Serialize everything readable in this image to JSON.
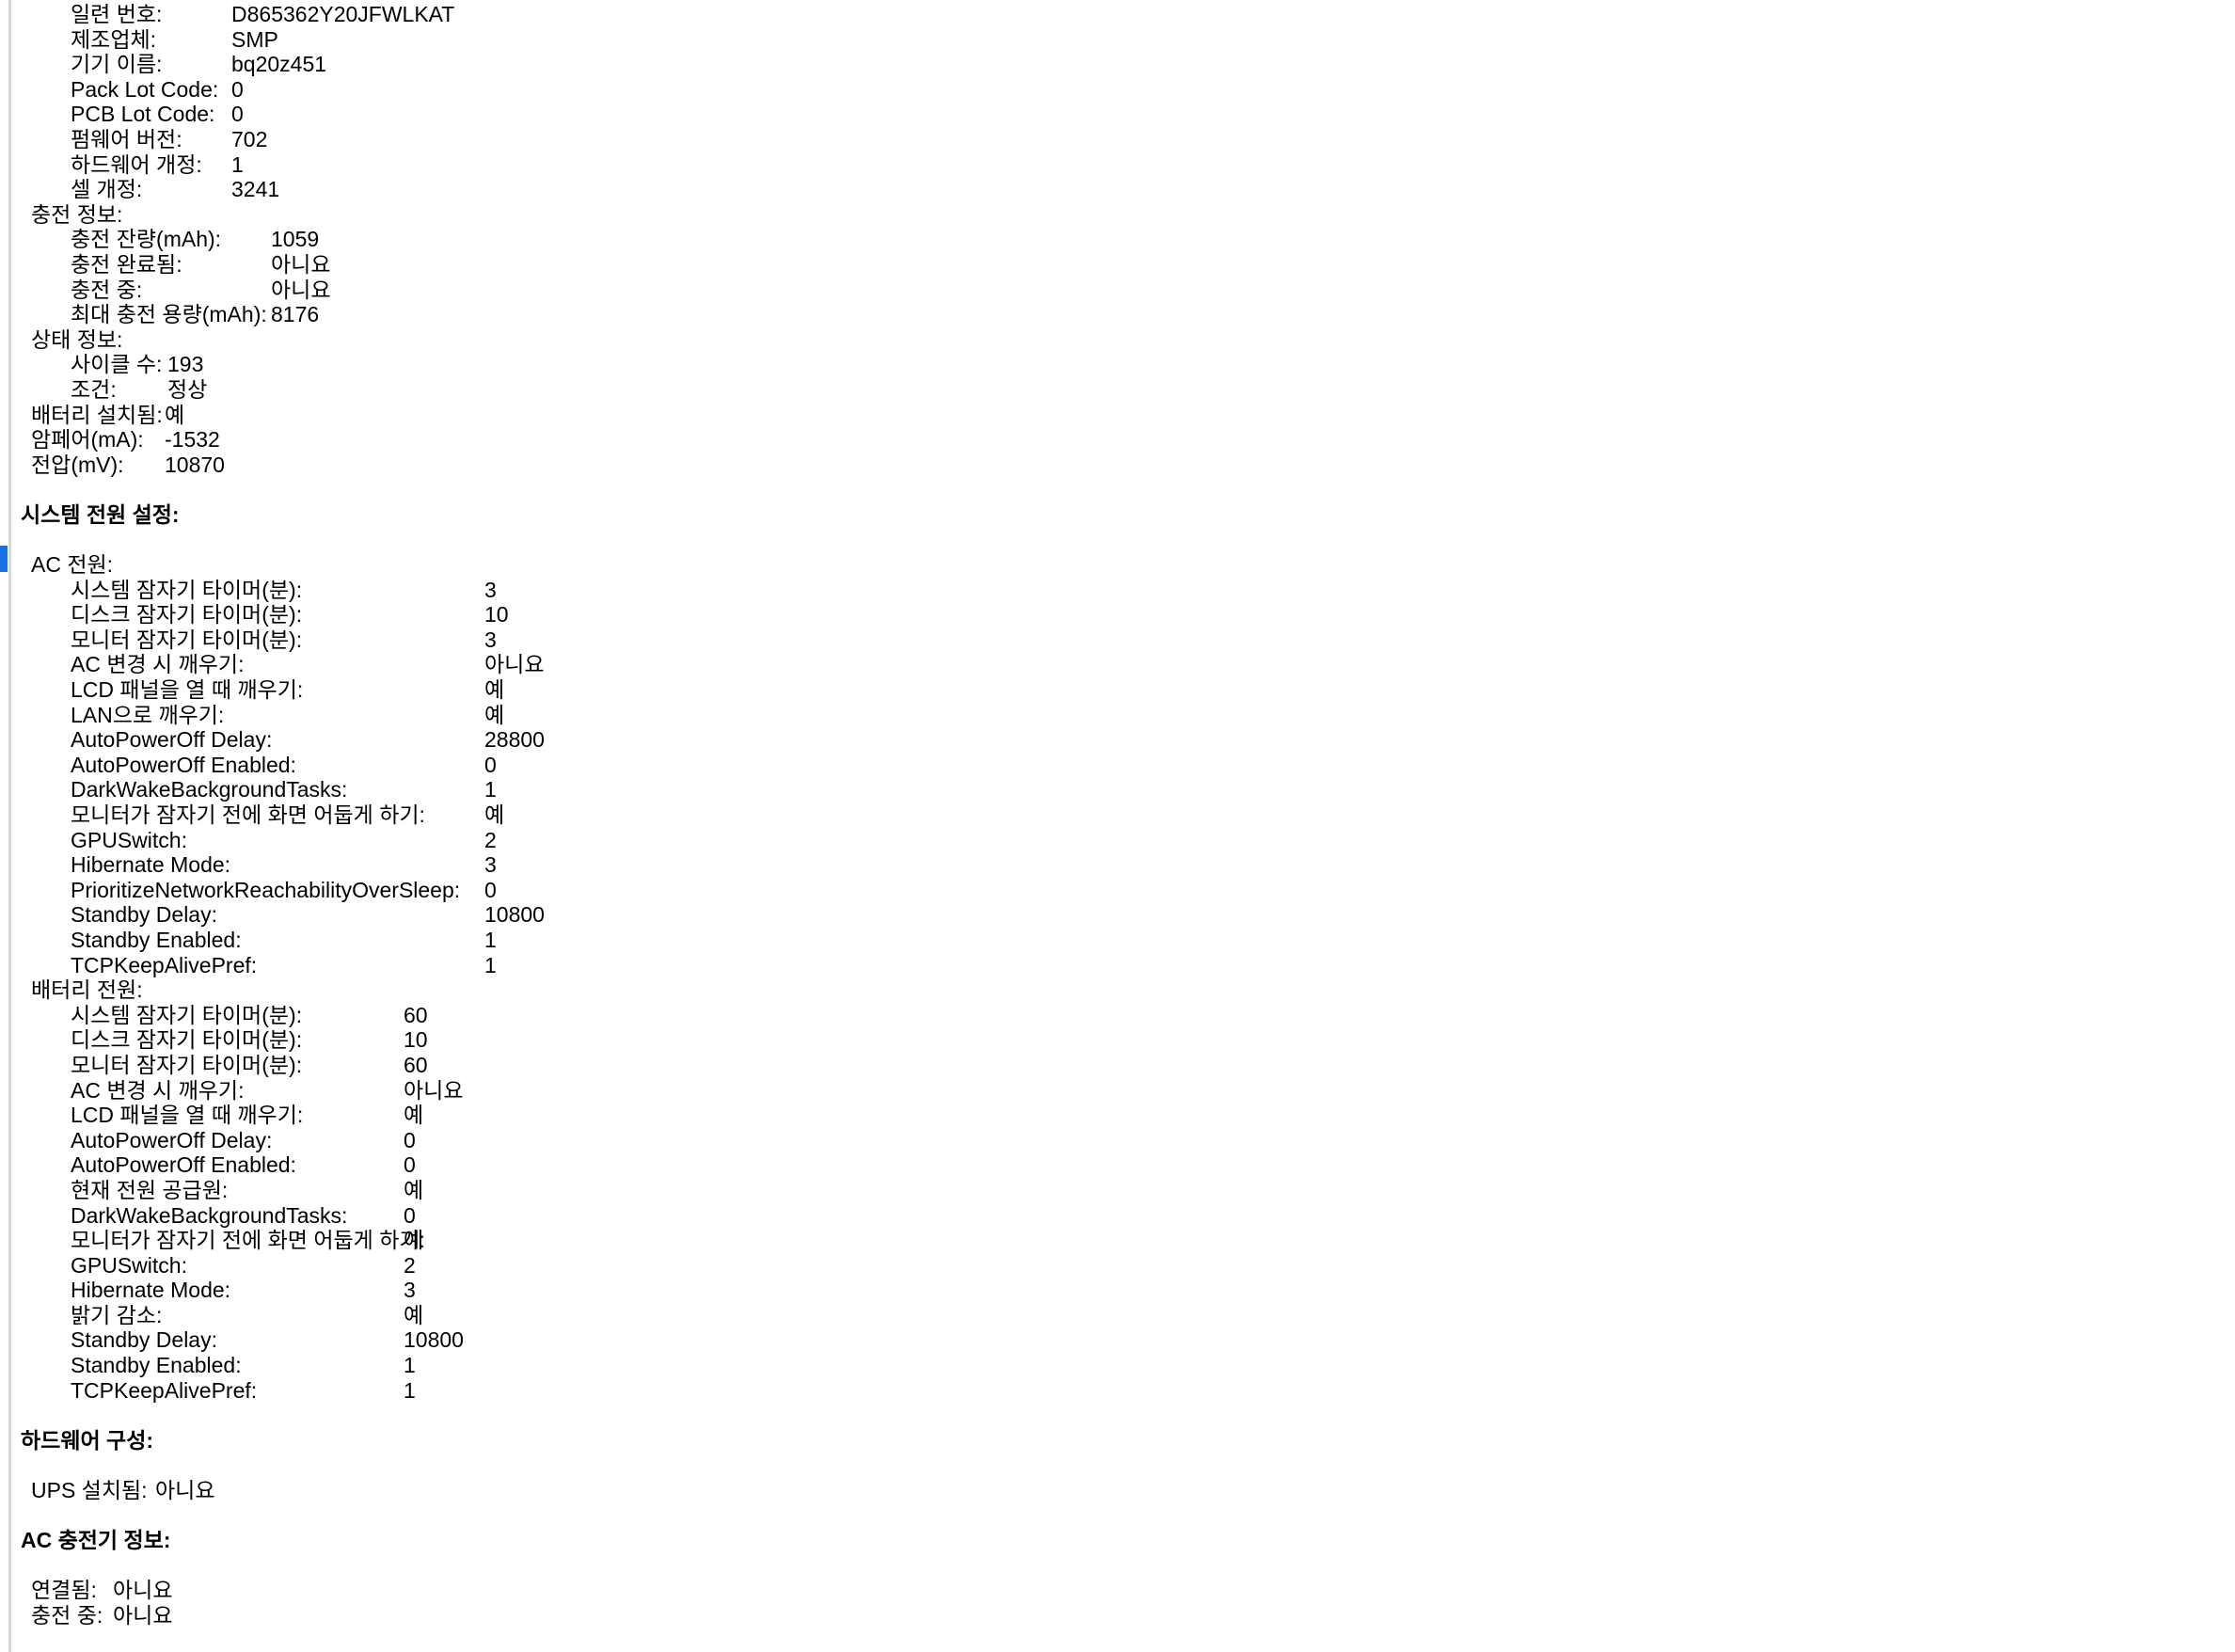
{
  "meta": {
    "app": "System Information battery / power text report (Korean macOS)",
    "background_color": "#ffffff",
    "text_color": "#000000",
    "divider_color": "#d8d8d8",
    "selection_color": "#1b70e2"
  },
  "lines": [
    {
      "t": "kv",
      "lvl": 2,
      "label": "일련 번호:",
      "value": "D865362Y20JFWLKAT",
      "col": 246
    },
    {
      "t": "kv",
      "lvl": 2,
      "label": "제조업체:",
      "value": "SMP",
      "col": 246
    },
    {
      "t": "kv",
      "lvl": 2,
      "label": "기기 이름:",
      "value": "bq20z451",
      "col": 246
    },
    {
      "t": "kv",
      "lvl": 2,
      "label": "Pack Lot Code:",
      "value": "0",
      "col": 246
    },
    {
      "t": "kv",
      "lvl": 2,
      "label": "PCB Lot Code:",
      "value": "0",
      "col": 246
    },
    {
      "t": "kv",
      "lvl": 2,
      "label": "펌웨어 버전:",
      "value": "702",
      "col": 246
    },
    {
      "t": "kv",
      "lvl": 2,
      "label": "하드웨어 개정:",
      "value": "1",
      "col": 246
    },
    {
      "t": "kv",
      "lvl": 2,
      "label": "셀 개정:",
      "value": "3241",
      "col": 246
    },
    {
      "t": "grp",
      "lvl": 1,
      "label": "충전 정보:"
    },
    {
      "t": "kv",
      "lvl": 2,
      "label": "충전 잔량(mAh):",
      "value": "1059",
      "col": 288
    },
    {
      "t": "kv",
      "lvl": 2,
      "label": "충전 완료됨:",
      "value": "아니요",
      "col": 288
    },
    {
      "t": "kv",
      "lvl": 2,
      "label": "충전 중:",
      "value": "아니요",
      "col": 288
    },
    {
      "t": "kv",
      "lvl": 2,
      "label": "최대 충전 용량(mAh):",
      "value": "8176",
      "col": 288
    },
    {
      "t": "grp",
      "lvl": 1,
      "label": "상태 정보:"
    },
    {
      "t": "kv",
      "lvl": 2,
      "label": "사이클 수:",
      "value": "193",
      "col": 178
    },
    {
      "t": "kv",
      "lvl": 2,
      "label": "조건:",
      "value": "정상",
      "col": 178
    },
    {
      "t": "kv",
      "lvl": 1,
      "label": "배터리 설치됨:",
      "value": "예",
      "col": 175
    },
    {
      "t": "kv",
      "lvl": 1,
      "label": "암페어(mA):",
      "value": "-1532",
      "col": 175
    },
    {
      "t": "kv",
      "lvl": 1,
      "label": "전압(mV):",
      "value": "10870",
      "col": 175
    },
    {
      "t": "blank"
    },
    {
      "t": "h",
      "label": "시스템 전원 설정:"
    },
    {
      "t": "blank"
    },
    {
      "t": "grp",
      "lvl": 1,
      "label": "AC 전원:"
    },
    {
      "t": "kv",
      "lvl": 2,
      "label": "시스템 잠자기 타이머(분):",
      "value": "3",
      "col": 515
    },
    {
      "t": "kv",
      "lvl": 2,
      "label": "디스크 잠자기 타이머(분):",
      "value": "10",
      "col": 515
    },
    {
      "t": "kv",
      "lvl": 2,
      "label": "모니터 잠자기 타이머(분):",
      "value": "3",
      "col": 515
    },
    {
      "t": "kv",
      "lvl": 2,
      "label": "AC 변경 시 깨우기:",
      "value": "아니요",
      "col": 515
    },
    {
      "t": "kv",
      "lvl": 2,
      "label": "LCD 패널을 열 때 깨우기:",
      "value": "예",
      "col": 515
    },
    {
      "t": "kv",
      "lvl": 2,
      "label": "LAN으로 깨우기:",
      "value": "예",
      "col": 515
    },
    {
      "t": "kv",
      "lvl": 2,
      "label": "AutoPowerOff Delay:",
      "value": "28800",
      "col": 515
    },
    {
      "t": "kv",
      "lvl": 2,
      "label": "AutoPowerOff Enabled:",
      "value": "0",
      "col": 515
    },
    {
      "t": "kv",
      "lvl": 2,
      "label": "DarkWakeBackgroundTasks:",
      "value": "1",
      "col": 515
    },
    {
      "t": "kv",
      "lvl": 2,
      "label": "모니터가 잠자기 전에 화면 어둡게 하기:",
      "value": "예",
      "col": 515
    },
    {
      "t": "kv",
      "lvl": 2,
      "label": "GPUSwitch:",
      "value": "2",
      "col": 515
    },
    {
      "t": "kv",
      "lvl": 2,
      "label": "Hibernate Mode:",
      "value": "3",
      "col": 515
    },
    {
      "t": "kv",
      "lvl": 2,
      "label": "PrioritizeNetworkReachabilityOverSleep:",
      "value": "0",
      "col": 515
    },
    {
      "t": "kv",
      "lvl": 2,
      "label": "Standby Delay:",
      "value": "10800",
      "col": 515
    },
    {
      "t": "kv",
      "lvl": 2,
      "label": "Standby Enabled:",
      "value": "1",
      "col": 515
    },
    {
      "t": "kv",
      "lvl": 2,
      "label": "TCPKeepAlivePref:",
      "value": "1",
      "col": 515
    },
    {
      "t": "grp",
      "lvl": 1,
      "label": "배터리 전원:"
    },
    {
      "t": "kv",
      "lvl": 2,
      "label": "시스템 잠자기 타이머(분):",
      "value": "60",
      "col": 429
    },
    {
      "t": "kv",
      "lvl": 2,
      "label": "디스크 잠자기 타이머(분):",
      "value": "10",
      "col": 429
    },
    {
      "t": "kv",
      "lvl": 2,
      "label": "모니터 잠자기 타이머(분):",
      "value": "60",
      "col": 429
    },
    {
      "t": "kv",
      "lvl": 2,
      "label": "AC 변경 시 깨우기:",
      "value": "아니요",
      "col": 429
    },
    {
      "t": "kv",
      "lvl": 2,
      "label": "LCD 패널을 열 때 깨우기:",
      "value": "예",
      "col": 429
    },
    {
      "t": "kv",
      "lvl": 2,
      "label": "AutoPowerOff Delay:",
      "value": "0",
      "col": 429
    },
    {
      "t": "kv",
      "lvl": 2,
      "label": "AutoPowerOff Enabled:",
      "value": "0",
      "col": 429
    },
    {
      "t": "kv",
      "lvl": 2,
      "label": "현재 전원 공급원:",
      "value": "예",
      "col": 429
    },
    {
      "t": "kv",
      "lvl": 2,
      "label": "DarkWakeBackgroundTasks:",
      "value": "0",
      "col": 429
    },
    {
      "t": "kv",
      "lvl": 2,
      "label": "모니터가 잠자기 전에 화면 어둡게 하기:",
      "value": "예",
      "col": 429
    },
    {
      "t": "kv",
      "lvl": 2,
      "label": "GPUSwitch:",
      "value": "2",
      "col": 429
    },
    {
      "t": "kv",
      "lvl": 2,
      "label": "Hibernate Mode:",
      "value": "3",
      "col": 429
    },
    {
      "t": "kv",
      "lvl": 2,
      "label": "밝기 감소:",
      "value": "예",
      "col": 429
    },
    {
      "t": "kv",
      "lvl": 2,
      "label": "Standby Delay:",
      "value": "10800",
      "col": 429
    },
    {
      "t": "kv",
      "lvl": 2,
      "label": "Standby Enabled:",
      "value": "1",
      "col": 429
    },
    {
      "t": "kv",
      "lvl": 2,
      "label": "TCPKeepAlivePref:",
      "value": "1",
      "col": 429
    },
    {
      "t": "blank"
    },
    {
      "t": "h",
      "label": "하드웨어 구성:"
    },
    {
      "t": "blank"
    },
    {
      "t": "kv",
      "lvl": 1,
      "label": "UPS 설치됨:",
      "value": "아니요",
      "col": 165
    },
    {
      "t": "blank"
    },
    {
      "t": "h",
      "label": "AC 충전기 정보:"
    },
    {
      "t": "blank"
    },
    {
      "t": "kv",
      "lvl": 1,
      "label": "연결됨:",
      "value": "아니요",
      "col": 120
    },
    {
      "t": "kv",
      "lvl": 1,
      "label": "충전 중:",
      "value": "아니요",
      "col": 120
    }
  ]
}
